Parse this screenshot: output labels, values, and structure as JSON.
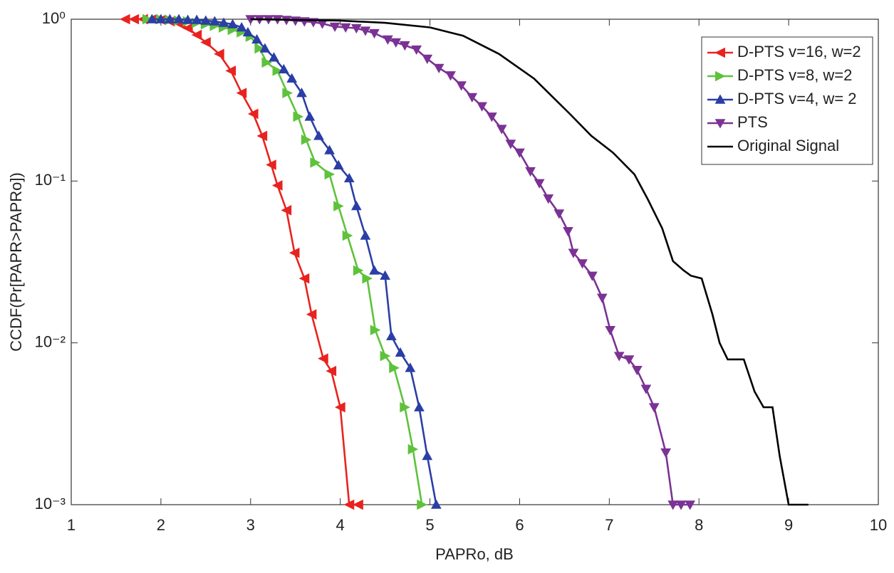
{
  "chart_data": {
    "type": "line",
    "xlabel": "PAPRo, dB",
    "ylabel": "CCDF(Pr[PAPR>PAPRo])",
    "xlim": [
      1,
      10
    ],
    "xticks": [
      1,
      2,
      3,
      4,
      5,
      6,
      7,
      8,
      9,
      10
    ],
    "ylim": [
      0.001,
      1
    ],
    "yscale": "log",
    "yticks": [
      {
        "value": 0.001,
        "label": "10⁻³"
      },
      {
        "value": 0.01,
        "label": "10⁻²"
      },
      {
        "value": 0.1,
        "label": "10⁻¹"
      },
      {
        "value": 1,
        "label": "10⁰"
      }
    ],
    "legend": "northeast",
    "series": [
      {
        "name": "D-PTS v=16, w=2",
        "color": "#e8231f",
        "marker": "left",
        "x": [
          1.6,
          1.7,
          1.8,
          1.9,
          2.0,
          2.1,
          2.2,
          2.3,
          2.4,
          2.5,
          2.65,
          2.78,
          2.9,
          3.03,
          3.13,
          3.23,
          3.3,
          3.4,
          3.49,
          3.6,
          3.68,
          3.81,
          3.9,
          4.0,
          4.1,
          4.2
        ],
        "values": [
          1,
          1,
          1,
          1,
          0.99,
          0.97,
          0.94,
          0.88,
          0.8,
          0.72,
          0.61,
          0.48,
          0.35,
          0.26,
          0.19,
          0.126,
          0.094,
          0.066,
          0.036,
          0.025,
          0.015,
          0.008,
          0.0067,
          0.004,
          0.001,
          0.001
        ]
      },
      {
        "name": "D-PTS v=8, w=2",
        "color": "#5ec23b",
        "marker": "right",
        "x": [
          1.85,
          2.0,
          2.1,
          2.2,
          2.3,
          2.4,
          2.5,
          2.6,
          2.7,
          2.8,
          2.9,
          3.0,
          3.1,
          3.18,
          3.3,
          3.41,
          3.53,
          3.62,
          3.72,
          3.88,
          3.98,
          4.08,
          4.2,
          4.3,
          4.39,
          4.5,
          4.6,
          4.72,
          4.81,
          4.91
        ],
        "values": [
          1,
          1,
          0.99,
          0.98,
          0.97,
          0.95,
          0.93,
          0.91,
          0.89,
          0.86,
          0.83,
          0.78,
          0.66,
          0.54,
          0.48,
          0.35,
          0.25,
          0.18,
          0.13,
          0.11,
          0.07,
          0.046,
          0.028,
          0.025,
          0.012,
          0.0083,
          0.007,
          0.004,
          0.0022,
          0.001
        ]
      },
      {
        "name": "D-PTS v=4, w= 2",
        "color": "#2b3ea6",
        "marker": "up",
        "x": [
          1.9,
          2.0,
          2.1,
          2.2,
          2.3,
          2.4,
          2.5,
          2.6,
          2.7,
          2.8,
          2.9,
          2.97,
          3.07,
          3.16,
          3.26,
          3.37,
          3.46,
          3.57,
          3.66,
          3.76,
          3.88,
          3.98,
          4.1,
          4.18,
          4.28,
          4.38,
          4.5,
          4.57,
          4.67,
          4.78,
          4.88,
          4.97,
          5.07
        ],
        "values": [
          1,
          1,
          1,
          1,
          0.99,
          0.99,
          0.98,
          0.97,
          0.95,
          0.93,
          0.89,
          0.83,
          0.75,
          0.66,
          0.58,
          0.49,
          0.43,
          0.35,
          0.25,
          0.19,
          0.155,
          0.125,
          0.104,
          0.07,
          0.046,
          0.028,
          0.026,
          0.011,
          0.0087,
          0.007,
          0.004,
          0.002,
          0.001
        ]
      },
      {
        "name": "PTS",
        "color": "#7b3294",
        "marker": "down",
        "x": [
          3.0,
          3.1,
          3.2,
          3.3,
          3.4,
          3.5,
          3.6,
          3.7,
          3.8,
          3.94,
          4.06,
          4.18,
          4.28,
          4.38,
          4.53,
          4.62,
          4.72,
          4.85,
          4.97,
          5.1,
          5.23,
          5.35,
          5.47,
          5.58,
          5.69,
          5.8,
          5.9,
          6.0,
          6.12,
          6.22,
          6.32,
          6.44,
          6.54,
          6.6,
          6.7,
          6.81,
          6.92,
          7.01,
          7.11,
          7.22,
          7.31,
          7.41,
          7.5,
          7.63,
          7.71,
          7.8,
          7.9
        ],
        "values": [
          1,
          1,
          1,
          1,
          0.99,
          0.98,
          0.97,
          0.96,
          0.94,
          0.9,
          0.89,
          0.88,
          0.85,
          0.82,
          0.75,
          0.72,
          0.69,
          0.65,
          0.57,
          0.5,
          0.45,
          0.39,
          0.33,
          0.29,
          0.25,
          0.21,
          0.17,
          0.15,
          0.115,
          0.097,
          0.078,
          0.063,
          0.049,
          0.036,
          0.031,
          0.026,
          0.019,
          0.012,
          0.0083,
          0.0079,
          0.0068,
          0.0052,
          0.004,
          0.0021,
          0.001,
          0.001,
          0.001
        ]
      },
      {
        "name": "Original Signal",
        "color": "#000000",
        "marker": "none",
        "x": [
          3.0,
          4.0,
          4.5,
          5.0,
          5.37,
          5.77,
          6.16,
          6.56,
          6.8,
          7.04,
          7.28,
          7.43,
          7.59,
          7.71,
          7.83,
          7.91,
          8.03,
          8.15,
          8.23,
          8.32,
          8.5,
          8.62,
          8.72,
          8.82,
          8.9,
          9.0,
          9.22
        ],
        "values": [
          1,
          0.98,
          0.95,
          0.89,
          0.79,
          0.61,
          0.43,
          0.26,
          0.19,
          0.15,
          0.11,
          0.077,
          0.051,
          0.032,
          0.028,
          0.026,
          0.025,
          0.015,
          0.01,
          0.0079,
          0.0079,
          0.005,
          0.004,
          0.004,
          0.002,
          0.001,
          0.001
        ]
      }
    ]
  }
}
